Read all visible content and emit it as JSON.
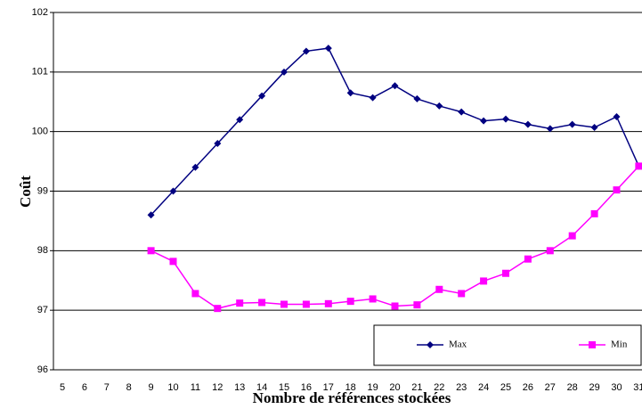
{
  "chart_data": {
    "type": "line",
    "x_label": "Nombre de références stockées",
    "y_label": "Coût",
    "categories": [
      5,
      6,
      7,
      8,
      9,
      10,
      11,
      12,
      13,
      14,
      15,
      16,
      17,
      18,
      19,
      20,
      21,
      22,
      23,
      24,
      25,
      26,
      27,
      28,
      29,
      30,
      31
    ],
    "series": [
      {
        "name": "Max",
        "color": "#000080",
        "marker": "diamond",
        "values": [
          null,
          null,
          null,
          null,
          98.6,
          99.0,
          99.4,
          99.8,
          100.2,
          100.6,
          101.0,
          101.35,
          101.4,
          100.65,
          100.57,
          100.77,
          100.55,
          100.43,
          100.33,
          100.18,
          100.21,
          100.12,
          100.05,
          100.12,
          100.07,
          100.25,
          99.42
        ]
      },
      {
        "name": "Min",
        "color": "#ff00ff",
        "marker": "square",
        "values": [
          null,
          null,
          null,
          null,
          98.0,
          97.82,
          97.28,
          97.03,
          97.12,
          97.13,
          97.1,
          97.1,
          97.11,
          97.15,
          97.19,
          97.07,
          97.09,
          97.35,
          97.28,
          97.49,
          97.62,
          97.86,
          98.0,
          98.25,
          98.62,
          99.02,
          99.42
        ]
      }
    ],
    "ylim": [
      96,
      102
    ],
    "yticks": [
      96,
      97,
      98,
      99,
      100,
      101,
      102
    ],
    "grid": true,
    "legend": "lower right"
  }
}
